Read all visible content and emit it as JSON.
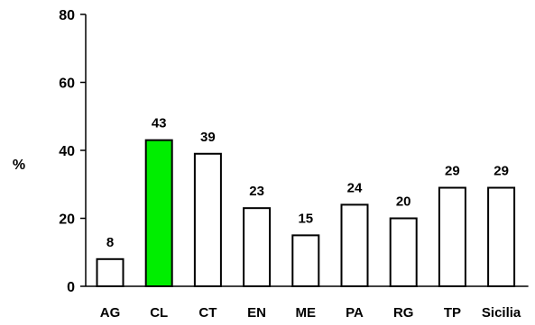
{
  "chart_data": {
    "type": "bar",
    "title": "",
    "xlabel": "",
    "ylabel": "%",
    "ylim": [
      0,
      80
    ],
    "yticks": [
      "0",
      "20",
      "40",
      "60",
      "80"
    ],
    "grid": false,
    "categories": [
      "AG",
      "CL",
      "CT",
      "EN",
      "ME",
      "PA",
      "RG",
      "TP",
      "Sicilia"
    ],
    "values": [
      8,
      43,
      39,
      23,
      15,
      24,
      20,
      29,
      29
    ],
    "data_labels": [
      "8",
      "43",
      "39",
      "23",
      "15",
      "24",
      "20",
      "29",
      "29"
    ],
    "colors": {
      "default_fill": "#ffffff",
      "highlight_fill": "#00ee00",
      "stroke": "#000000",
      "axis": "#000000",
      "text": "#000000"
    },
    "highlight_category": "CL"
  }
}
